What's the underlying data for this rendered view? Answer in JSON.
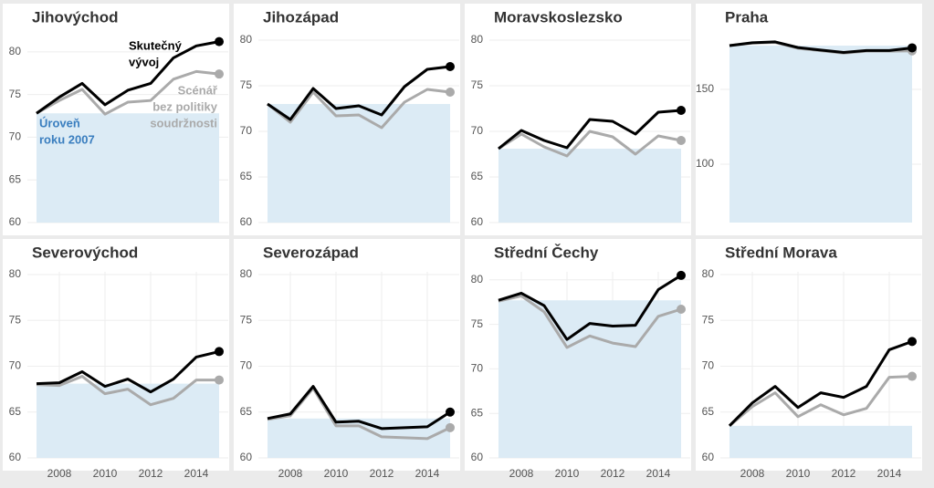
{
  "chart_data": [
    {
      "type": "line",
      "title": "Jihovýchod",
      "x": [
        2007,
        2008,
        2009,
        2010,
        2011,
        2012,
        2013,
        2014,
        2015
      ],
      "xlim": [
        2006.6,
        2015.4
      ],
      "ylim": [
        60,
        81.8
      ],
      "yticks": [
        60,
        65,
        70,
        75,
        80
      ],
      "series": [
        {
          "name": "Skutečný vývoj",
          "color": "#000000",
          "values": [
            72.8,
            74.7,
            76.3,
            73.8,
            75.5,
            76.3,
            79.3,
            80.7,
            81.2
          ]
        },
        {
          "name": "Scénář bez politiky soudržnosti",
          "color": "#aaaaaa",
          "values": [
            72.8,
            74.3,
            75.6,
            72.7,
            74.1,
            74.3,
            76.8,
            77.7,
            77.4
          ]
        }
      ],
      "area_color": "#dcebf5",
      "annotations": [
        {
          "text": [
            "Skutečný",
            "vývoj"
          ],
          "color": "#000000"
        },
        {
          "text": [
            "Scénář",
            "bez politiky",
            "soudržnosti"
          ],
          "color": "#aaaaaa"
        },
        {
          "text": [
            "Úroveň",
            "roku 2007"
          ],
          "color": "#3a7ebf"
        }
      ]
    },
    {
      "type": "line",
      "title": "Jihozápad",
      "x": [
        2007,
        2008,
        2009,
        2010,
        2011,
        2012,
        2013,
        2014,
        2015
      ],
      "xlim": [
        2006.6,
        2015.4
      ],
      "ylim": [
        60,
        80.4
      ],
      "yticks": [
        60,
        65,
        70,
        75,
        80
      ],
      "series": [
        {
          "name": "Skutečný vývoj",
          "color": "#000000",
          "values": [
            73.0,
            71.3,
            74.7,
            72.5,
            72.8,
            71.8,
            74.9,
            76.8,
            77.1
          ]
        },
        {
          "name": "Scénář bez politiky soudržnosti",
          "color": "#aaaaaa",
          "values": [
            73.0,
            71.0,
            74.3,
            71.7,
            71.8,
            70.4,
            73.2,
            74.6,
            74.3
          ]
        }
      ],
      "area_color": "#dcebf5"
    },
    {
      "type": "line",
      "title": "Moravskoslezsko",
      "x": [
        2007,
        2008,
        2009,
        2010,
        2011,
        2012,
        2013,
        2014,
        2015
      ],
      "xlim": [
        2006.6,
        2015.4
      ],
      "ylim": [
        60,
        80.4
      ],
      "yticks": [
        60,
        65,
        70,
        75,
        80
      ],
      "series": [
        {
          "name": "Skutečný vývoj",
          "color": "#000000",
          "values": [
            68.1,
            70.1,
            69.0,
            68.2,
            71.3,
            71.1,
            69.7,
            72.1,
            72.3
          ]
        },
        {
          "name": "Scénář bez politiky soudržnosti",
          "color": "#aaaaaa",
          "values": [
            68.1,
            69.7,
            68.3,
            67.3,
            70.0,
            69.4,
            67.5,
            69.5,
            69.0
          ]
        }
      ],
      "area_color": "#dcebf5"
    },
    {
      "type": "line",
      "title": "Praha",
      "x": [
        2007,
        2008,
        2009,
        2010,
        2011,
        2012,
        2013,
        2014,
        2015
      ],
      "xlim": [
        2006.6,
        2015.4
      ],
      "ylim": [
        61,
        185.4
      ],
      "yticks": [
        100,
        150
      ],
      "series": [
        {
          "name": "Skutečný vývoj",
          "color": "#000000",
          "values": [
            179.3,
            181.2,
            181.8,
            178.0,
            176.3,
            174.7,
            176.0,
            176.0,
            177.8
          ]
        },
        {
          "name": "Scénář bez politiky soudržnosti",
          "color": "#aaaaaa",
          "values": [
            179.3,
            181.0,
            181.4,
            177.5,
            175.9,
            174.3,
            175.6,
            175.6,
            175.8
          ]
        }
      ],
      "area_color": "#dcebf5"
    },
    {
      "type": "line",
      "title": "Severovýchod",
      "x": [
        2007,
        2008,
        2009,
        2010,
        2011,
        2012,
        2013,
        2014,
        2015
      ],
      "xlim": [
        2006.6,
        2015.4
      ],
      "xticks": [
        2008,
        2010,
        2012,
        2014
      ],
      "ylim": [
        60,
        80.3
      ],
      "yticks": [
        60,
        65,
        70,
        75,
        80
      ],
      "series": [
        {
          "name": "Skutečný vývoj",
          "color": "#000000",
          "values": [
            68.1,
            68.2,
            69.4,
            67.8,
            68.6,
            67.2,
            68.6,
            71.0,
            71.6
          ]
        },
        {
          "name": "Scénář bez politiky soudržnosti",
          "color": "#aaaaaa",
          "values": [
            68.0,
            67.9,
            68.9,
            67.0,
            67.5,
            65.8,
            66.5,
            68.5,
            68.5
          ]
        }
      ],
      "area_color": "#dcebf5"
    },
    {
      "type": "line",
      "title": "Severozápad",
      "x": [
        2007,
        2008,
        2009,
        2010,
        2011,
        2012,
        2013,
        2014,
        2015
      ],
      "xlim": [
        2006.6,
        2015.4
      ],
      "xticks": [
        2008,
        2010,
        2012,
        2014
      ],
      "ylim": [
        60,
        80.3
      ],
      "yticks": [
        60,
        65,
        70,
        75,
        80
      ],
      "series": [
        {
          "name": "Skutečný vývoj",
          "color": "#000000",
          "values": [
            64.3,
            64.8,
            67.8,
            63.9,
            64.0,
            63.2,
            63.3,
            63.4,
            65.0
          ]
        },
        {
          "name": "Scénář bez politiky soudržnosti",
          "color": "#aaaaaa",
          "values": [
            64.2,
            64.6,
            67.6,
            63.5,
            63.5,
            62.3,
            62.2,
            62.1,
            63.3
          ]
        }
      ],
      "area_color": "#dcebf5"
    },
    {
      "type": "line",
      "title": "Střední Čechy",
      "x": [
        2007,
        2008,
        2009,
        2010,
        2011,
        2012,
        2013,
        2014,
        2015
      ],
      "xlim": [
        2006.6,
        2015.4
      ],
      "xticks": [
        2008,
        2010,
        2012,
        2014
      ],
      "ylim": [
        60,
        80.9
      ],
      "yticks": [
        60,
        65,
        70,
        75,
        80
      ],
      "series": [
        {
          "name": "Skutečný vývoj",
          "color": "#000000",
          "values": [
            77.7,
            78.5,
            77.1,
            73.3,
            75.1,
            74.8,
            74.9,
            78.9,
            80.5
          ]
        },
        {
          "name": "Scénář bez politiky soudržnosti",
          "color": "#aaaaaa",
          "values": [
            77.6,
            78.2,
            76.4,
            72.4,
            73.7,
            72.9,
            72.5,
            75.9,
            76.7
          ]
        }
      ],
      "area_color": "#dcebf5"
    },
    {
      "type": "line",
      "title": "Střední Morava",
      "x": [
        2007,
        2008,
        2009,
        2010,
        2011,
        2012,
        2013,
        2014,
        2015
      ],
      "xlim": [
        2006.6,
        2015.4
      ],
      "xticks": [
        2008,
        2010,
        2012,
        2014
      ],
      "ylim": [
        60,
        80.3
      ],
      "yticks": [
        60,
        65,
        70,
        75,
        80
      ],
      "series": [
        {
          "name": "Skutečný vývoj",
          "color": "#000000",
          "values": [
            63.5,
            66.0,
            67.8,
            65.5,
            67.1,
            66.6,
            67.8,
            71.8,
            72.7
          ]
        },
        {
          "name": "Scénář bez politiky soudržnosti",
          "color": "#aaaaaa",
          "values": [
            63.5,
            65.6,
            67.1,
            64.5,
            65.8,
            64.7,
            65.4,
            68.8,
            68.9
          ]
        }
      ],
      "area_color": "#dcebf5"
    }
  ]
}
